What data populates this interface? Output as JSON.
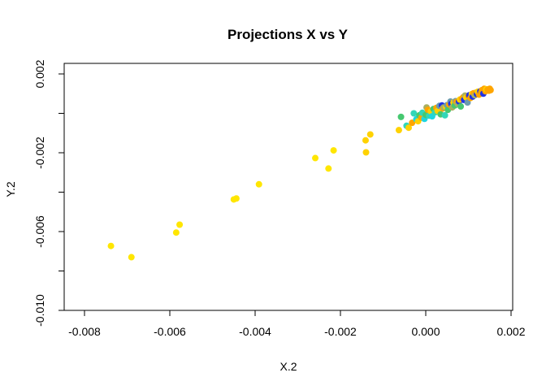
{
  "chart_data": {
    "type": "scatter",
    "title": "Projections X vs Y",
    "xlabel": "X.2",
    "ylabel": "Y.2",
    "xlim": [
      -0.0085,
      0.002
    ],
    "ylim": [
      -0.01,
      0.0022
    ],
    "x_ticks": [
      -0.008,
      -0.006,
      -0.004,
      -0.002,
      0.0,
      0.002
    ],
    "x_tick_labels": [
      "-0.008",
      "-0.006",
      "-0.004",
      "-0.002",
      "0.000",
      "0.002"
    ],
    "y_ticks": [
      0.002,
      -0.002,
      -0.006,
      -0.01
    ],
    "y_tick_labels": [
      "0.002",
      "-0.002",
      "-0.006",
      "-0.010"
    ],
    "y_minor_ticks": [
      0.0,
      -0.004,
      -0.008
    ],
    "grid": false,
    "legend": "none",
    "colors": {
      "yellow": "#FFE600",
      "gold": "#FFD200",
      "orange": "#FFA500",
      "blue": "#1E33E6",
      "cyan": "#1DD6E0",
      "turquoise": "#33D6B8",
      "green": "#46C870",
      "olive": "#A8B060",
      "steel": "#6A9AAE"
    },
    "points": [
      {
        "x": -0.00738,
        "y": -0.00673,
        "c": "yellow"
      },
      {
        "x": -0.0069,
        "y": -0.0073,
        "c": "yellow"
      },
      {
        "x": -0.00585,
        "y": -0.00605,
        "c": "yellow"
      },
      {
        "x": -0.00577,
        "y": -0.00565,
        "c": "yellow"
      },
      {
        "x": -0.0045,
        "y": -0.00437,
        "c": "yellow"
      },
      {
        "x": -0.00444,
        "y": -0.00432,
        "c": "yellow"
      },
      {
        "x": -0.00391,
        "y": -0.0036,
        "c": "yellow"
      },
      {
        "x": -0.00259,
        "y": -0.00227,
        "c": "yellow"
      },
      {
        "x": -0.00228,
        "y": -0.0028,
        "c": "yellow"
      },
      {
        "x": -0.00216,
        "y": -0.00188,
        "c": "yellow"
      },
      {
        "x": -0.00141,
        "y": -0.00137,
        "c": "gold"
      },
      {
        "x": -0.0013,
        "y": -0.00107,
        "c": "gold"
      },
      {
        "x": -0.0014,
        "y": -0.00198,
        "c": "gold"
      },
      {
        "x": -0.00063,
        "y": -0.00085,
        "c": "gold"
      },
      {
        "x": -0.00058,
        "y": -0.00018,
        "c": "green"
      },
      {
        "x": -0.00045,
        "y": -0.00063,
        "c": "turquoise"
      },
      {
        "x": -0.0004,
        "y": -0.00073,
        "c": "gold"
      },
      {
        "x": -0.00032,
        "y": -0.00048,
        "c": "orange"
      },
      {
        "x": -0.00028,
        "y": 0.0,
        "c": "turquoise"
      },
      {
        "x": -0.00022,
        "y": -0.0003,
        "c": "cyan"
      },
      {
        "x": -0.00018,
        "y": -0.0004,
        "c": "gold"
      },
      {
        "x": -0.00015,
        "y": -0.0001,
        "c": "green"
      },
      {
        "x": -0.0001,
        "y": -0.00022,
        "c": "orange"
      },
      {
        "x": -8e-05,
        "y": 3e-05,
        "c": "turquoise"
      },
      {
        "x": -3e-05,
        "y": -0.00028,
        "c": "cyan"
      },
      {
        "x": 0.0,
        "y": -8e-05,
        "c": "green"
      },
      {
        "x": 2e-05,
        "y": 0.0003,
        "c": "olive"
      },
      {
        "x": 5e-05,
        "y": 0.00018,
        "c": "orange"
      },
      {
        "x": 8e-05,
        "y": -0.00012,
        "c": "turquoise"
      },
      {
        "x": 0.00012,
        "y": 0.0001,
        "c": "gold"
      },
      {
        "x": 0.00015,
        "y": -0.00015,
        "c": "cyan"
      },
      {
        "x": 0.00018,
        "y": 0.00022,
        "c": "green"
      },
      {
        "x": 0.00022,
        "y": 5e-05,
        "c": "turquoise"
      },
      {
        "x": 0.00025,
        "y": 0.00028,
        "c": "orange"
      },
      {
        "x": 0.00028,
        "y": 0.00012,
        "c": "gold"
      },
      {
        "x": 0.00032,
        "y": 0.00038,
        "c": "steel"
      },
      {
        "x": 0.00035,
        "y": -5e-05,
        "c": "green"
      },
      {
        "x": 0.00038,
        "y": 0.0004,
        "c": "blue"
      },
      {
        "x": 0.0004,
        "y": 0.00025,
        "c": "orange"
      },
      {
        "x": 0.00042,
        "y": 0.0003,
        "c": "olive"
      },
      {
        "x": 0.00045,
        "y": -0.0001,
        "c": "turquoise"
      },
      {
        "x": 0.00048,
        "y": 0.00032,
        "c": "gold"
      },
      {
        "x": 0.0005,
        "y": 0.00042,
        "c": "steel"
      },
      {
        "x": 0.00052,
        "y": 0.00018,
        "c": "green"
      },
      {
        "x": 0.00055,
        "y": 0.00045,
        "c": "orange"
      },
      {
        "x": 0.00058,
        "y": 0.0006,
        "c": "steel"
      },
      {
        "x": 0.0006,
        "y": 0.00048,
        "c": "blue"
      },
      {
        "x": 0.00062,
        "y": 0.0003,
        "c": "olive"
      },
      {
        "x": 0.00065,
        "y": 0.00055,
        "c": "gold"
      },
      {
        "x": 0.00068,
        "y": 0.0004,
        "c": "green"
      },
      {
        "x": 0.0007,
        "y": 0.00062,
        "c": "steel"
      },
      {
        "x": 0.00072,
        "y": 0.00058,
        "c": "orange"
      },
      {
        "x": 0.00075,
        "y": 0.00048,
        "c": "olive"
      },
      {
        "x": 0.00078,
        "y": 0.0006,
        "c": "blue"
      },
      {
        "x": 0.0008,
        "y": 0.0007,
        "c": "gold"
      },
      {
        "x": 0.00082,
        "y": 0.00035,
        "c": "green"
      },
      {
        "x": 0.00085,
        "y": 0.00075,
        "c": "orange"
      },
      {
        "x": 0.00088,
        "y": 0.00082,
        "c": "orange"
      },
      {
        "x": 0.0009,
        "y": 0.00068,
        "c": "blue"
      },
      {
        "x": 0.00092,
        "y": 0.0009,
        "c": "olive"
      },
      {
        "x": 0.00095,
        "y": 0.0008,
        "c": "gold"
      },
      {
        "x": 0.00098,
        "y": 0.00055,
        "c": "steel"
      },
      {
        "x": 0.001,
        "y": 0.00088,
        "c": "orange"
      },
      {
        "x": 0.00102,
        "y": 0.00092,
        "c": "blue"
      },
      {
        "x": 0.00105,
        "y": 0.00078,
        "c": "orange"
      },
      {
        "x": 0.00108,
        "y": 0.00098,
        "c": "gold"
      },
      {
        "x": 0.0011,
        "y": 0.00085,
        "c": "blue"
      },
      {
        "x": 0.00112,
        "y": 0.00102,
        "c": "orange"
      },
      {
        "x": 0.00115,
        "y": 0.00092,
        "c": "olive"
      },
      {
        "x": 0.00118,
        "y": 0.00105,
        "c": "orange"
      },
      {
        "x": 0.0012,
        "y": 0.00098,
        "c": "blue"
      },
      {
        "x": 0.00122,
        "y": 0.0011,
        "c": "gold"
      },
      {
        "x": 0.00125,
        "y": 0.00095,
        "c": "orange"
      },
      {
        "x": 0.00128,
        "y": 0.00112,
        "c": "blue"
      },
      {
        "x": 0.0013,
        "y": 0.00105,
        "c": "orange"
      },
      {
        "x": 0.00132,
        "y": 0.00118,
        "c": "orange"
      },
      {
        "x": 0.00135,
        "y": 0.001,
        "c": "blue"
      },
      {
        "x": 0.00137,
        "y": 0.00125,
        "c": "orange"
      },
      {
        "x": 0.0014,
        "y": 0.00112,
        "c": "orange"
      },
      {
        "x": 0.00142,
        "y": 0.00122,
        "c": "gold"
      },
      {
        "x": 0.00145,
        "y": 0.0012,
        "c": "orange"
      },
      {
        "x": 0.00148,
        "y": 0.00115,
        "c": "orange"
      },
      {
        "x": 0.0015,
        "y": 0.00125,
        "c": "orange"
      },
      {
        "x": 0.00152,
        "y": 0.00118,
        "c": "orange"
      }
    ]
  }
}
